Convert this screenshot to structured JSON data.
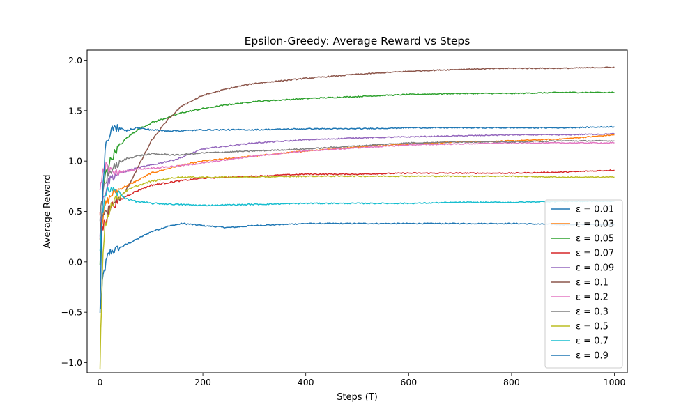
{
  "chart_data": {
    "type": "line",
    "title": "Epsilon-Greedy: Average Reward vs Steps",
    "xlabel": "Steps (T)",
    "ylabel": "Average Reward",
    "xlim": [
      -25,
      1025
    ],
    "ylim": [
      -1.1,
      2.1
    ],
    "xticks": [
      0,
      200,
      400,
      600,
      800,
      1000
    ],
    "yticks": [
      -1.0,
      -0.5,
      0.0,
      0.5,
      1.0,
      1.5,
      2.0
    ],
    "xtick_labels": [
      "0",
      "200",
      "400",
      "600",
      "800",
      "1000"
    ],
    "ytick_labels": [
      "−1.0",
      "−0.5",
      "0.0",
      "0.5",
      "1.0",
      "1.5",
      "2.0"
    ],
    "grid": false,
    "legend_position": "lower-right",
    "series": [
      {
        "name": "ε = 0.01",
        "color": "#1f77b4",
        "x": [
          0,
          3,
          6,
          10,
          15,
          20,
          30,
          50,
          70,
          100,
          130,
          160,
          200,
          250,
          300,
          400,
          500,
          600,
          700,
          800,
          900,
          1000
        ],
        "y": [
          -0.5,
          -0.35,
          -0.15,
          -0.05,
          0.05,
          0.1,
          0.12,
          0.17,
          0.22,
          0.3,
          0.35,
          0.38,
          0.36,
          0.34,
          0.36,
          0.38,
          0.38,
          0.38,
          0.38,
          0.38,
          0.37,
          0.37
        ]
      },
      {
        "name": "ε = 0.03",
        "color": "#ff7f0e",
        "x": [
          0,
          3,
          6,
          10,
          15,
          20,
          30,
          50,
          70,
          100,
          150,
          200,
          300,
          400,
          500,
          600,
          700,
          800,
          900,
          1000
        ],
        "y": [
          0.5,
          0.4,
          0.45,
          0.55,
          0.6,
          0.65,
          0.7,
          0.75,
          0.8,
          0.88,
          0.95,
          1.0,
          1.05,
          1.1,
          1.14,
          1.17,
          1.19,
          1.2,
          1.22,
          1.26
        ]
      },
      {
        "name": "ε = 0.05",
        "color": "#2ca02c",
        "x": [
          0,
          3,
          6,
          10,
          15,
          20,
          30,
          50,
          70,
          100,
          130,
          160,
          200,
          250,
          300,
          400,
          500,
          600,
          700,
          800,
          900,
          1000
        ],
        "y": [
          0.0,
          0.4,
          0.7,
          0.85,
          0.95,
          1.0,
          1.1,
          1.22,
          1.3,
          1.38,
          1.43,
          1.48,
          1.52,
          1.56,
          1.59,
          1.62,
          1.64,
          1.66,
          1.67,
          1.67,
          1.68,
          1.68
        ]
      },
      {
        "name": "ε = 0.07",
        "color": "#d62728",
        "x": [
          0,
          3,
          6,
          10,
          15,
          20,
          30,
          50,
          70,
          100,
          150,
          200,
          300,
          400,
          500,
          600,
          700,
          800,
          900,
          1000
        ],
        "y": [
          0.4,
          0.3,
          0.35,
          0.4,
          0.48,
          0.55,
          0.58,
          0.65,
          0.7,
          0.76,
          0.8,
          0.83,
          0.85,
          0.87,
          0.87,
          0.88,
          0.88,
          0.88,
          0.89,
          0.91
        ]
      },
      {
        "name": "ε = 0.09",
        "color": "#9467bd",
        "x": [
          0,
          3,
          6,
          10,
          15,
          20,
          30,
          50,
          70,
          100,
          150,
          200,
          300,
          400,
          500,
          600,
          700,
          800,
          900,
          1000
        ],
        "y": [
          0.3,
          0.5,
          0.6,
          0.7,
          0.78,
          0.83,
          0.86,
          0.9,
          0.93,
          0.96,
          1.02,
          1.12,
          1.18,
          1.21,
          1.23,
          1.24,
          1.25,
          1.26,
          1.26,
          1.27
        ]
      },
      {
        "name": "ε = 0.1",
        "color": "#8c564b",
        "x": [
          0,
          3,
          6,
          10,
          15,
          20,
          30,
          50,
          70,
          100,
          130,
          160,
          200,
          250,
          300,
          400,
          500,
          600,
          700,
          800,
          900,
          1000
        ],
        "y": [
          0.3,
          0.35,
          0.45,
          0.5,
          0.5,
          0.55,
          0.6,
          0.7,
          0.9,
          1.2,
          1.4,
          1.55,
          1.65,
          1.72,
          1.77,
          1.82,
          1.86,
          1.89,
          1.91,
          1.92,
          1.92,
          1.93
        ]
      },
      {
        "name": "ε = 0.2",
        "color": "#e377c2",
        "x": [
          0,
          3,
          6,
          10,
          15,
          20,
          30,
          50,
          70,
          100,
          150,
          200,
          300,
          400,
          500,
          600,
          700,
          800,
          900,
          1000
        ],
        "y": [
          0.7,
          0.8,
          0.9,
          0.95,
          0.93,
          0.9,
          0.88,
          0.9,
          0.92,
          0.93,
          0.95,
          0.98,
          1.05,
          1.1,
          1.13,
          1.16,
          1.17,
          1.18,
          1.18,
          1.18
        ]
      },
      {
        "name": "ε = 0.3",
        "color": "#7f7f7f",
        "x": [
          0,
          3,
          6,
          10,
          15,
          20,
          30,
          50,
          70,
          100,
          150,
          200,
          300,
          400,
          500,
          600,
          700,
          800,
          900,
          1000
        ],
        "y": [
          0.4,
          0.55,
          0.7,
          0.8,
          0.85,
          0.9,
          0.95,
          1.02,
          1.05,
          1.07,
          1.06,
          1.08,
          1.1,
          1.12,
          1.15,
          1.18,
          1.19,
          1.19,
          1.2,
          1.2
        ]
      },
      {
        "name": "ε = 0.5",
        "color": "#bcbd22",
        "x": [
          0,
          3,
          6,
          10,
          15,
          20,
          30,
          50,
          70,
          100,
          150,
          200,
          300,
          400,
          500,
          600,
          700,
          800,
          900,
          1000
        ],
        "y": [
          -0.97,
          -0.4,
          0.1,
          0.35,
          0.45,
          0.55,
          0.62,
          0.7,
          0.75,
          0.8,
          0.84,
          0.84,
          0.84,
          0.85,
          0.85,
          0.85,
          0.85,
          0.85,
          0.84,
          0.84
        ]
      },
      {
        "name": "ε = 0.7",
        "color": "#17becf",
        "x": [
          0,
          3,
          6,
          10,
          15,
          20,
          30,
          50,
          70,
          100,
          150,
          200,
          300,
          400,
          500,
          600,
          700,
          800,
          900,
          1000
        ],
        "y": [
          0.2,
          0.4,
          0.55,
          0.65,
          0.7,
          0.72,
          0.7,
          0.63,
          0.6,
          0.58,
          0.57,
          0.56,
          0.57,
          0.58,
          0.58,
          0.58,
          0.59,
          0.59,
          0.6,
          0.6
        ]
      },
      {
        "name": "ε = 0.9",
        "color": "#1f77b4",
        "x": [
          0,
          3,
          6,
          10,
          15,
          20,
          30,
          40,
          50,
          70,
          100,
          130,
          160,
          200,
          300,
          400,
          500,
          600,
          700,
          800,
          900,
          1000
        ],
        "y": [
          -0.45,
          0.3,
          0.8,
          1.1,
          1.2,
          1.3,
          1.33,
          1.32,
          1.3,
          1.33,
          1.31,
          1.3,
          1.3,
          1.31,
          1.31,
          1.32,
          1.32,
          1.33,
          1.33,
          1.33,
          1.33,
          1.34
        ]
      }
    ]
  }
}
